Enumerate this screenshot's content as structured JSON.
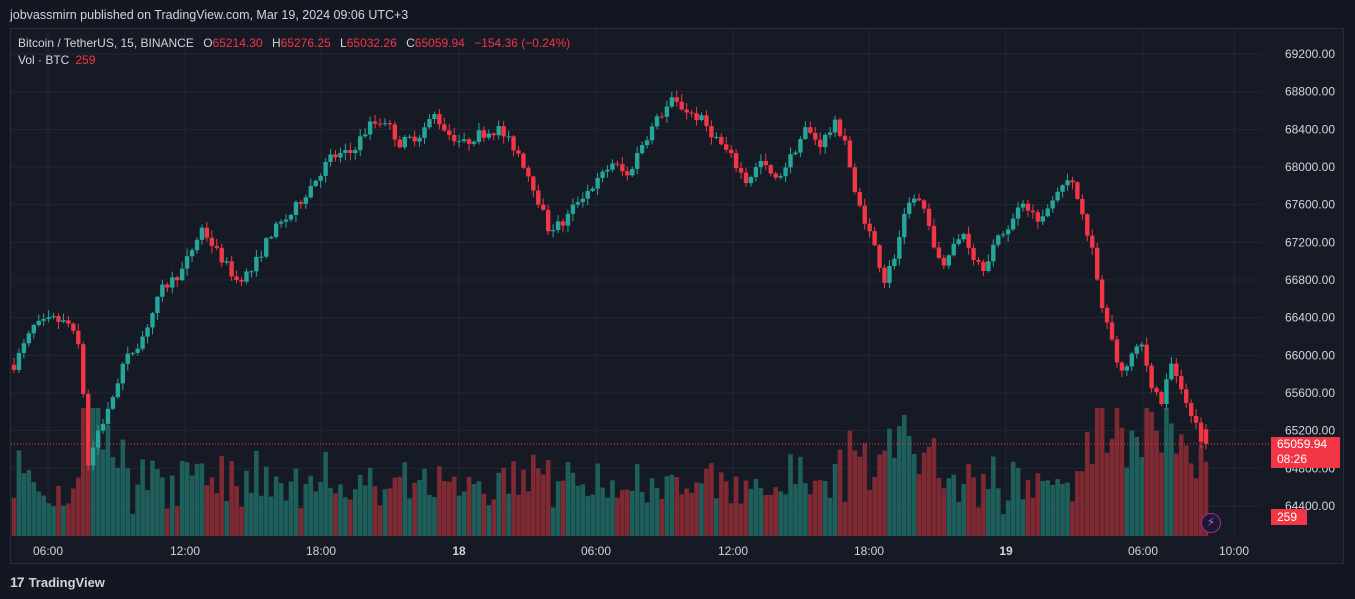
{
  "header": {
    "text": "jobvassmirn published on TradingView.com, Mar 19, 2024 09:06 UTC+3"
  },
  "legend": {
    "symbol": "Bitcoin / TetherUS, 15, BINANCE",
    "open_label": "O",
    "open": "65214.30",
    "high_label": "H",
    "high": "65276.25",
    "low_label": "L",
    "low": "65032.26",
    "close_label": "C",
    "close": "65059.94",
    "change": "−154.36 (−0.24%)",
    "vol_label": "Vol · BTC",
    "vol_value": "259"
  },
  "price_tag": {
    "price": "65059.94",
    "countdown": "08:26"
  },
  "volume_tag": {
    "value": "259"
  },
  "footer": {
    "logo": "17",
    "brand": "TradingView"
  },
  "colors": {
    "up": "#26a69a",
    "down": "#f23645",
    "background": "#161a25",
    "grid": "#232733",
    "text": "#d1d4dc"
  },
  "chart_data": {
    "type": "candlestick",
    "title": "Bitcoin / TetherUS, 15, BINANCE",
    "y_ticks": [
      "69200.00",
      "68800.00",
      "68400.00",
      "68000.00",
      "67600.00",
      "67200.00",
      "66800.00",
      "66400.00",
      "66000.00",
      "65600.00",
      "65200.00",
      "64800.00",
      "64400.00"
    ],
    "x_ticks": [
      "06:00",
      "12:00",
      "18:00",
      "18",
      "06:00",
      "12:00",
      "18:00",
      "19",
      "06:00",
      "10:00"
    ],
    "ylim": [
      64200,
      69450
    ],
    "last_price": 65059.94,
    "close_path": [
      [
        0,
        65900
      ],
      [
        4,
        66300
      ],
      [
        8,
        66380
      ],
      [
        11,
        66330
      ],
      [
        13,
        66100
      ],
      [
        14,
        65600
      ],
      [
        15,
        64850
      ],
      [
        17,
        65200
      ],
      [
        19,
        65400
      ],
      [
        22,
        65900
      ],
      [
        26,
        66200
      ],
      [
        30,
        66700
      ],
      [
        34,
        66900
      ],
      [
        38,
        67350
      ],
      [
        41,
        67100
      ],
      [
        45,
        66800
      ],
      [
        48,
        66900
      ],
      [
        52,
        67300
      ],
      [
        56,
        67500
      ],
      [
        60,
        67800
      ],
      [
        64,
        68100
      ],
      [
        68,
        68150
      ],
      [
        72,
        68450
      ],
      [
        75,
        68500
      ],
      [
        78,
        68250
      ],
      [
        82,
        68350
      ],
      [
        85,
        68550
      ],
      [
        88,
        68350
      ],
      [
        91,
        68250
      ],
      [
        94,
        68350
      ],
      [
        98,
        68400
      ],
      [
        102,
        68150
      ],
      [
        105,
        67800
      ],
      [
        108,
        67350
      ],
      [
        111,
        67400
      ],
      [
        114,
        67650
      ],
      [
        118,
        67850
      ],
      [
        121,
        68050
      ],
      [
        124,
        67900
      ],
      [
        127,
        68250
      ],
      [
        130,
        68500
      ],
      [
        133,
        68700
      ],
      [
        136,
        68600
      ],
      [
        139,
        68500
      ],
      [
        142,
        68300
      ],
      [
        145,
        68100
      ],
      [
        148,
        67850
      ],
      [
        151,
        68050
      ],
      [
        154,
        67850
      ],
      [
        157,
        68100
      ],
      [
        160,
        68400
      ],
      [
        163,
        68250
      ],
      [
        166,
        68450
      ],
      [
        168,
        68300
      ],
      [
        170,
        67700
      ],
      [
        172,
        67450
      ],
      [
        174,
        67150
      ],
      [
        176,
        66800
      ],
      [
        178,
        67050
      ],
      [
        180,
        67450
      ],
      [
        182,
        67700
      ],
      [
        184,
        67550
      ],
      [
        186,
        67100
      ],
      [
        188,
        67000
      ],
      [
        190,
        67150
      ],
      [
        192,
        67300
      ],
      [
        194,
        67050
      ],
      [
        196,
        66950
      ],
      [
        198,
        67150
      ],
      [
        200,
        67300
      ],
      [
        202,
        67450
      ],
      [
        204,
        67650
      ],
      [
        206,
        67500
      ],
      [
        208,
        67450
      ],
      [
        210,
        67700
      ],
      [
        212,
        67850
      ],
      [
        214,
        67800
      ],
      [
        216,
        67550
      ],
      [
        218,
        67100
      ],
      [
        220,
        66500
      ],
      [
        222,
        66150
      ],
      [
        224,
        65800
      ],
      [
        226,
        66000
      ],
      [
        228,
        66100
      ],
      [
        230,
        65700
      ],
      [
        232,
        65500
      ],
      [
        234,
        65900
      ],
      [
        236,
        65600
      ],
      [
        238,
        65400
      ],
      [
        240,
        65100
      ],
      [
        241,
        65060
      ]
    ]
  }
}
